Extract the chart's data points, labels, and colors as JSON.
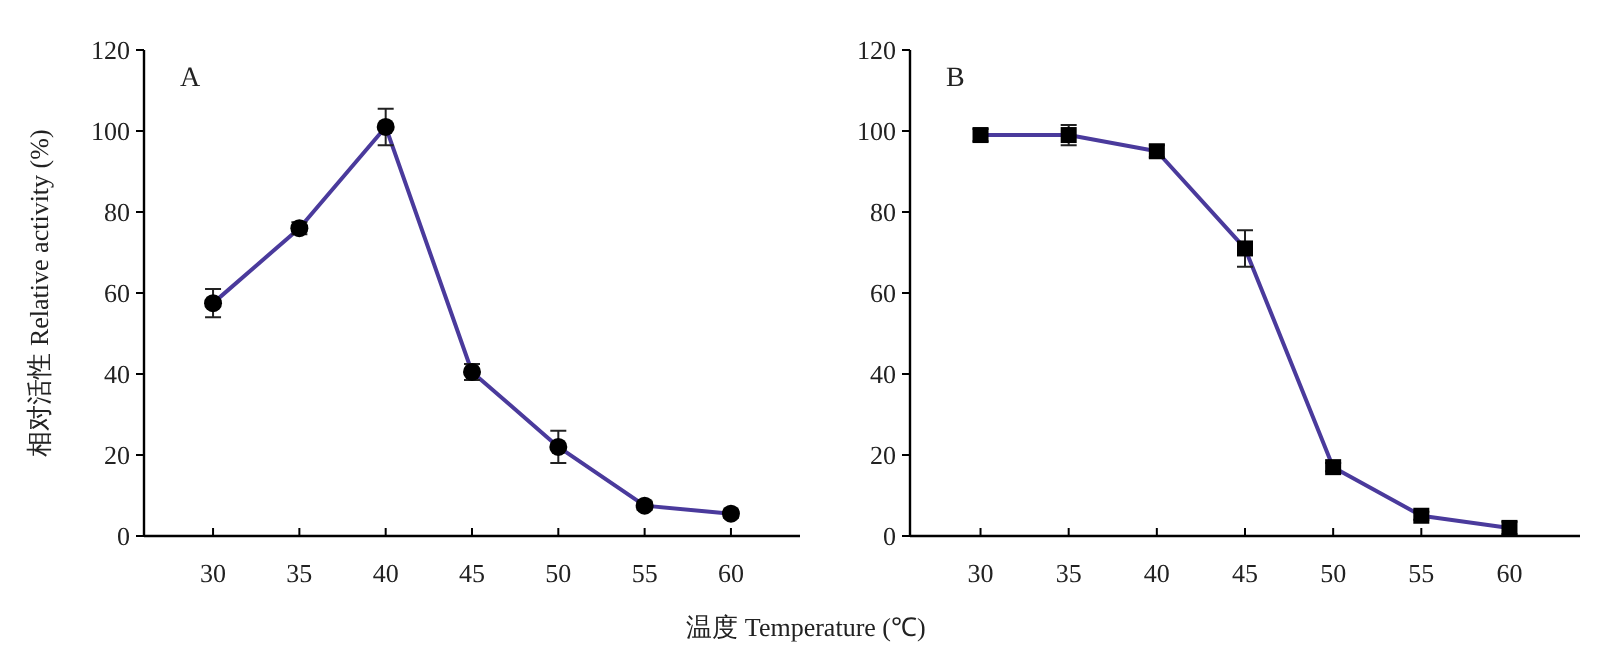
{
  "chart_data": [
    {
      "type": "line",
      "title": "A",
      "xlabel": "温度 Temperature (℃)",
      "ylabel": "相对活性 Relative activity (%)",
      "x": [
        30,
        35,
        40,
        45,
        50,
        55,
        60
      ],
      "xlim": [
        26,
        64
      ],
      "xticks": [
        30,
        35,
        40,
        45,
        50,
        55,
        60
      ],
      "ylim": [
        0,
        120
      ],
      "yticks": [
        0,
        20,
        40,
        60,
        80,
        100,
        120
      ],
      "marker": "circle",
      "line_style": "solid",
      "series": [
        {
          "color": "#4a3a9c",
          "values": [
            57.5,
            76,
            101,
            40.5,
            22,
            7.5,
            5.5
          ],
          "errors": [
            3.5,
            1.5,
            4.5,
            2,
            4,
            1,
            1
          ]
        }
      ]
    },
    {
      "type": "line",
      "title": "B",
      "x": [
        30,
        35,
        40,
        45,
        50,
        55,
        60
      ],
      "xlim": [
        26,
        64
      ],
      "xticks": [
        30,
        35,
        40,
        45,
        50,
        55,
        60
      ],
      "ylim": [
        0,
        120
      ],
      "yticks": [
        0,
        20,
        40,
        60,
        80,
        100,
        120
      ],
      "marker": "square",
      "line_style": "solid",
      "series": [
        {
          "color": "#4a3a9c",
          "values": [
            99,
            99,
            95,
            71,
            17,
            5,
            2
          ],
          "errors": [
            1.5,
            2.5,
            1.5,
            4.5,
            1,
            1,
            1.5
          ]
        }
      ]
    }
  ]
}
